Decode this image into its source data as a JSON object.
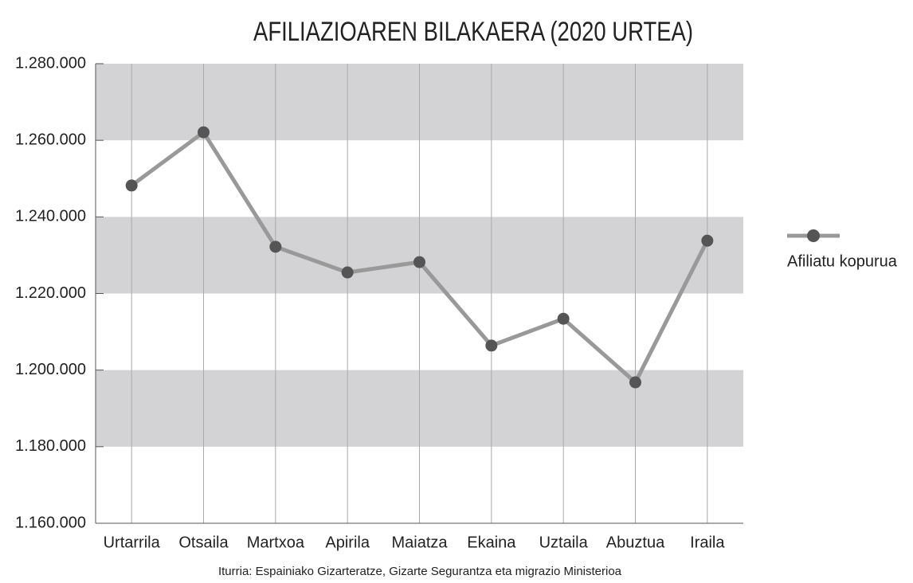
{
  "chart_data": {
    "type": "line",
    "title": "AFILIAZIOAREN BILAKAERA (2020 URTEA)",
    "source": "Iturria: Espainiako Gizarteratze, Gizarte Segurantza eta migrazio Ministerioa",
    "categories": [
      "Urtarrila",
      "Otsaila",
      "Martxoa",
      "Apirila",
      "Maiatza",
      "Ekaina",
      "Uztaila",
      "Abuztua",
      "Iraila"
    ],
    "series": [
      {
        "name": "Afiliatu kopurua",
        "color": "#999999",
        "marker_color": "#555555",
        "values": [
          1248200,
          1262100,
          1232200,
          1225500,
          1228200,
          1206400,
          1213400,
          1196800,
          1233800
        ]
      }
    ],
    "ylim": [
      1160000,
      1280000
    ],
    "yticks": [
      {
        "value": 1160000,
        "label": "1.160.000"
      },
      {
        "value": 1180000,
        "label": "1.180.000"
      },
      {
        "value": 1200000,
        "label": "1.200.000"
      },
      {
        "value": 1220000,
        "label": "1.220.000"
      },
      {
        "value": 1240000,
        "label": "1.240.000"
      },
      {
        "value": 1260000,
        "label": "1.260.000"
      },
      {
        "value": 1280000,
        "label": "1.280.000"
      }
    ],
    "band_color": "#d3d3d5",
    "grid": true,
    "legend": "right"
  }
}
